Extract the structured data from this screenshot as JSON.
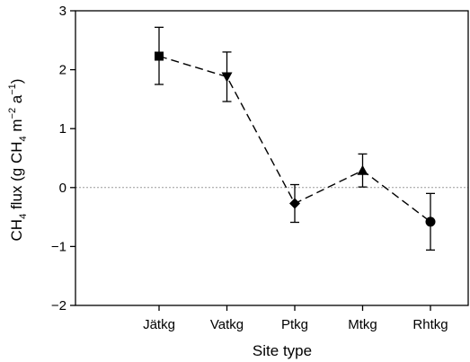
{
  "chart_data": {
    "type": "scatter",
    "title": "",
    "xlabel": "Site type",
    "ylabel": {
      "parts": [
        "CH",
        "4",
        " flux (g CH",
        "4",
        " m",
        "−2",
        " a",
        "−1",
        ")"
      ]
    },
    "categories": [
      "Jätkg",
      "Vatkg",
      "Ptkg",
      "Mtkg",
      "Rhtkg"
    ],
    "ylim": [
      -2,
      3
    ],
    "yticks": [
      -2,
      -1,
      0,
      1,
      2,
      3
    ],
    "ytick_labels": [
      "−2",
      "−1",
      "0",
      "1",
      "2",
      "3"
    ],
    "series": [
      {
        "values": [
          2.23,
          1.88,
          -0.27,
          0.29,
          -0.58
        ],
        "err_low": [
          1.75,
          1.46,
          -0.59,
          0.01,
          -1.06
        ],
        "err_high": [
          2.72,
          2.3,
          0.05,
          0.57,
          -0.1
        ],
        "markers": [
          "square",
          "triangle-down",
          "diamond",
          "triangle-up",
          "circle"
        ],
        "line_style": "dashed"
      }
    ],
    "reference_line": {
      "y": 0,
      "style": "dotted",
      "color": "#9a9a9a"
    },
    "grid": false,
    "legend": "none"
  }
}
